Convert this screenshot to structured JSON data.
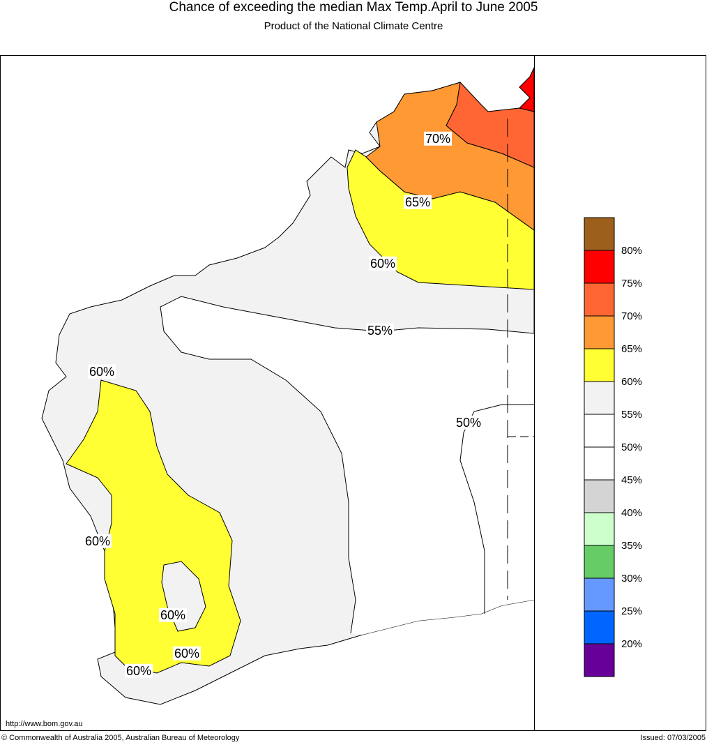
{
  "header": {
    "title": "Chance of exceeding the median Max Temp.April to June 2005",
    "subtitle": "Product of the National Climate Centre"
  },
  "map": {
    "contour_labels": [
      "70%",
      "65%",
      "60%",
      "55%",
      "50%",
      "60%",
      "60%",
      "60%",
      "60%",
      "60%"
    ]
  },
  "legend": {
    "colors": [
      "#9c5f1c",
      "#ff0000",
      "#ff6633",
      "#ff9933",
      "#ffff33",
      "#f2f2f2",
      "#ffffff",
      "#ffffff",
      "#d4d4d4",
      "#ccffcc",
      "#66cc66",
      "#6699ff",
      "#0066ff",
      "#660099"
    ],
    "labels": [
      "80%",
      "75%",
      "70%",
      "65%",
      "60%",
      "55%",
      "50%",
      "45%",
      "40%",
      "35%",
      "30%",
      "25%",
      "20%"
    ]
  },
  "footer": {
    "url": "http://www.bom.gov.au",
    "copyright": "© Commonwealth of Australia 2005, Australian Bureau of Meteorology",
    "issued": "Issued: 07/03/2005"
  }
}
